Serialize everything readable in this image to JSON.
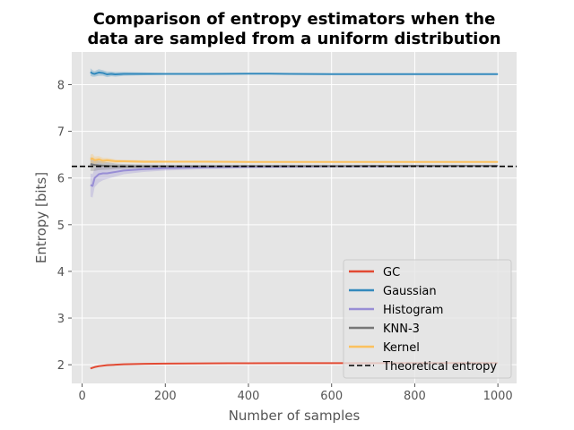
{
  "chart_data": {
    "type": "line",
    "title": "Comparison of entropy estimators when the data are sampled from a uniform distribution",
    "title_lines": [
      "Comparison of entropy estimators when the",
      "data are sampled from a uniform distribution"
    ],
    "xlabel": "Number of samples",
    "ylabel": "Entropy [bits]",
    "xlim": [
      -25,
      1045
    ],
    "ylim": [
      1.6,
      8.7
    ],
    "xticks": [
      0,
      200,
      400,
      600,
      800,
      1000
    ],
    "yticks": [
      2,
      3,
      4,
      5,
      6,
      7,
      8
    ],
    "grid": true,
    "legend_position": "lower-right",
    "background": "#e5e5e5",
    "series": [
      {
        "name": "GC",
        "color": "#e24a33",
        "x": [
          20,
          30,
          40,
          60,
          80,
          100,
          150,
          200,
          300,
          400,
          500,
          600,
          700,
          800,
          900,
          1000
        ],
        "y": [
          1.92,
          1.95,
          1.97,
          1.99,
          2.0,
          2.01,
          2.02,
          2.025,
          2.03,
          2.032,
          2.034,
          2.035,
          2.035,
          2.036,
          2.036,
          2.036
        ],
        "band": [
          0.01,
          0.01,
          0.01,
          0.01,
          0.01,
          0.01,
          0.01,
          0.01,
          0.01,
          0.01,
          0.01,
          0.01,
          0.01,
          0.01,
          0.01,
          0.01
        ]
      },
      {
        "name": "Gaussian",
        "color": "#348abd",
        "x": [
          20,
          25,
          30,
          40,
          50,
          60,
          70,
          80,
          100,
          150,
          200,
          300,
          400,
          450,
          500,
          600,
          700,
          800,
          900,
          1000
        ],
        "y": [
          8.27,
          8.24,
          8.23,
          8.26,
          8.25,
          8.22,
          8.23,
          8.22,
          8.23,
          8.23,
          8.23,
          8.23,
          8.235,
          8.235,
          8.23,
          8.225,
          8.225,
          8.225,
          8.225,
          8.225
        ],
        "band": [
          0.08,
          0.07,
          0.06,
          0.07,
          0.06,
          0.06,
          0.05,
          0.05,
          0.04,
          0.03,
          0.02,
          0.02,
          0.015,
          0.015,
          0.015,
          0.015,
          0.012,
          0.012,
          0.012,
          0.012
        ]
      },
      {
        "name": "Histogram",
        "color": "#988ed5",
        "x": [
          20,
          25,
          30,
          40,
          50,
          60,
          80,
          100,
          150,
          200,
          300,
          400,
          500,
          600,
          700,
          800,
          900,
          1000
        ],
        "y": [
          5.85,
          5.83,
          6.0,
          6.08,
          6.1,
          6.1,
          6.13,
          6.16,
          6.19,
          6.21,
          6.23,
          6.24,
          6.245,
          6.25,
          6.25,
          6.255,
          6.255,
          6.26
        ],
        "band": [
          0.25,
          0.25,
          0.2,
          0.18,
          0.15,
          0.12,
          0.1,
          0.08,
          0.06,
          0.05,
          0.04,
          0.03,
          0.03,
          0.025,
          0.025,
          0.02,
          0.02,
          0.02
        ]
      },
      {
        "name": "KNN-3",
        "color": "#777777",
        "x": [
          20,
          30,
          40,
          60,
          80,
          100,
          150,
          200,
          300,
          400,
          500,
          600,
          700,
          800,
          900,
          1000
        ],
        "y": [
          6.3,
          6.28,
          6.27,
          6.26,
          6.25,
          6.25,
          6.25,
          6.25,
          6.25,
          6.255,
          6.255,
          6.255,
          6.26,
          6.26,
          6.26,
          6.26
        ],
        "band": [
          0.15,
          0.13,
          0.1,
          0.08,
          0.06,
          0.05,
          0.04,
          0.03,
          0.025,
          0.02,
          0.02,
          0.02,
          0.015,
          0.015,
          0.015,
          0.015
        ]
      },
      {
        "name": "Kernel",
        "color": "#fbc15e",
        "x": [
          20,
          25,
          30,
          40,
          50,
          60,
          80,
          100,
          150,
          200,
          300,
          400,
          500,
          600,
          700,
          800,
          900,
          1000
        ],
        "y": [
          6.4,
          6.42,
          6.38,
          6.4,
          6.37,
          6.38,
          6.36,
          6.36,
          6.35,
          6.35,
          6.35,
          6.345,
          6.345,
          6.345,
          6.345,
          6.345,
          6.345,
          6.345
        ],
        "band": [
          0.1,
          0.1,
          0.08,
          0.07,
          0.06,
          0.05,
          0.04,
          0.03,
          0.03,
          0.02,
          0.02,
          0.015,
          0.015,
          0.015,
          0.015,
          0.015,
          0.015,
          0.015
        ]
      }
    ],
    "reference_line": {
      "name": "Theoretical entropy",
      "y": 6.25,
      "color": "#000000",
      "style": "dashed"
    }
  }
}
